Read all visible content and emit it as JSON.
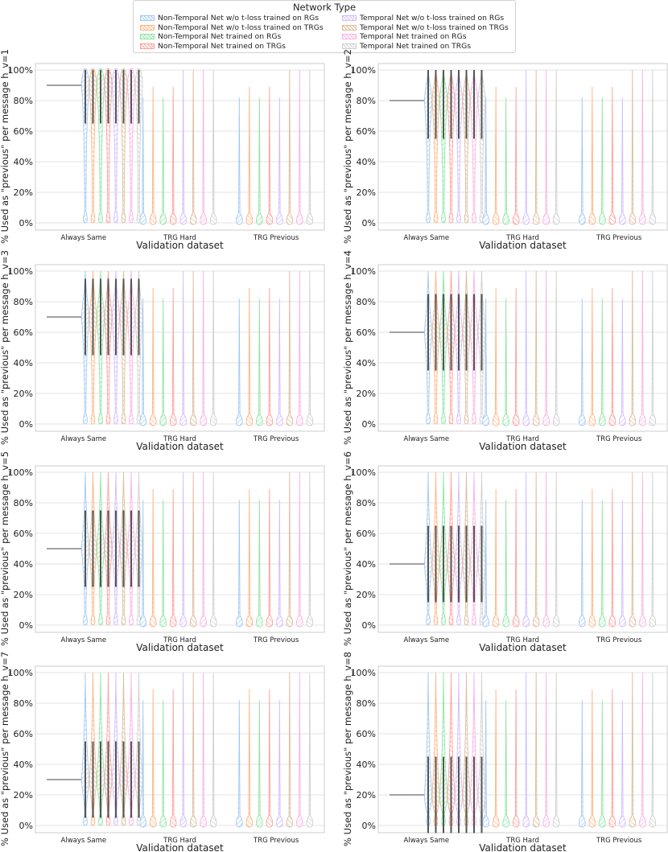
{
  "legend": {
    "title": "Network Type",
    "items": [
      {
        "label": "Non-Temporal Net w/o t-loss trained on RGs",
        "color": "#a1c9f4"
      },
      {
        "label": "Non-Temporal Net w/o t-loss trained on TRGs",
        "color": "#ffb482"
      },
      {
        "label": "Non-Temporal Net trained on RGs",
        "color": "#8de5a1"
      },
      {
        "label": "Non-Temporal Net trained on TRGs",
        "color": "#ff9f9b"
      },
      {
        "label": "Temporal Net w/o t-loss trained on RGs",
        "color": "#d0bbff"
      },
      {
        "label": "Temporal Net w/o t-loss trained on TRGs",
        "color": "#debb9b"
      },
      {
        "label": "Temporal Net trained on RGs",
        "color": "#fab0e4"
      },
      {
        "label": "Temporal Net trained on TRGs",
        "color": "#cfcfcf"
      }
    ]
  },
  "chart_data": [
    {
      "type": "violin",
      "ylabel": "% Used as \"previous\" per message h_v=1",
      "xlabel": "Validation dataset",
      "categories": [
        "Always Same",
        "TRG Hard",
        "TRG Previous"
      ],
      "yticks": [
        "0%",
        "20%",
        "40%",
        "60%",
        "80%",
        "100%"
      ],
      "ylim": [
        0,
        100
      ],
      "reference_value": 90
    },
    {
      "type": "violin",
      "ylabel": "% Used as \"previous\" per message h_v=2",
      "xlabel": "Validation dataset",
      "categories": [
        "Always Same",
        "TRG Hard",
        "TRG Previous"
      ],
      "yticks": [
        "0%",
        "20%",
        "40%",
        "60%",
        "80%",
        "100%"
      ],
      "ylim": [
        0,
        100
      ],
      "reference_value": 80
    },
    {
      "type": "violin",
      "ylabel": "% Used as \"previous\" per message h_v=3",
      "xlabel": "Validation dataset",
      "categories": [
        "Always Same",
        "TRG Hard",
        "TRG Previous"
      ],
      "yticks": [
        "0%",
        "20%",
        "40%",
        "60%",
        "80%",
        "100%"
      ],
      "ylim": [
        0,
        100
      ],
      "reference_value": 70
    },
    {
      "type": "violin",
      "ylabel": "% Used as \"previous\" per message h_v=4",
      "xlabel": "Validation dataset",
      "categories": [
        "Always Same",
        "TRG Hard",
        "TRG Previous"
      ],
      "yticks": [
        "0%",
        "20%",
        "40%",
        "60%",
        "80%",
        "100%"
      ],
      "ylim": [
        0,
        100
      ],
      "reference_value": 60
    },
    {
      "type": "violin",
      "ylabel": "% Used as \"previous\" per message h_v=5",
      "xlabel": "Validation dataset",
      "categories": [
        "Always Same",
        "TRG Hard",
        "TRG Previous"
      ],
      "yticks": [
        "0%",
        "20%",
        "40%",
        "60%",
        "80%",
        "100%"
      ],
      "ylim": [
        0,
        100
      ],
      "reference_value": 50
    },
    {
      "type": "violin",
      "ylabel": "% Used as \"previous\" per message h_v=6",
      "xlabel": "Validation dataset",
      "categories": [
        "Always Same",
        "TRG Hard",
        "TRG Previous"
      ],
      "yticks": [
        "0%",
        "20%",
        "40%",
        "60%",
        "80%",
        "100%"
      ],
      "ylim": [
        0,
        100
      ],
      "reference_value": 40
    },
    {
      "type": "violin",
      "ylabel": "% Used as \"previous\" per message h_v=7",
      "xlabel": "Validation dataset",
      "categories": [
        "Always Same",
        "TRG Hard",
        "TRG Previous"
      ],
      "yticks": [
        "0%",
        "20%",
        "40%",
        "60%",
        "80%",
        "100%"
      ],
      "ylim": [
        0,
        100
      ],
      "reference_value": 30
    },
    {
      "type": "violin",
      "ylabel": "% Used as \"previous\" per message h_v=8",
      "xlabel": "Validation dataset",
      "categories": [
        "Always Same",
        "TRG Hard",
        "TRG Previous"
      ],
      "yticks": [
        "0%",
        "20%",
        "40%",
        "60%",
        "80%",
        "100%"
      ],
      "ylim": [
        0,
        100
      ],
      "reference_value": 20
    }
  ]
}
